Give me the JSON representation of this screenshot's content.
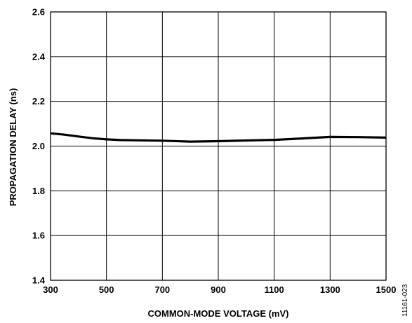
{
  "chart_data": {
    "type": "line",
    "title": "",
    "xlabel": "COMMON-MODE VOLTAGE (mV)",
    "ylabel": "PROPAGATION DELAY (ns)",
    "xlim": [
      300,
      1500
    ],
    "ylim": [
      1.4,
      2.6
    ],
    "xticks": [
      300,
      500,
      700,
      900,
      1100,
      1300,
      1500
    ],
    "yticks": [
      1.4,
      1.6,
      1.8,
      2.0,
      2.2,
      2.4,
      2.6
    ],
    "xtick_labels": [
      "300",
      "500",
      "700",
      "900",
      "1100",
      "1300",
      "1500"
    ],
    "ytick_labels": [
      "1.4",
      "1.6",
      "1.8",
      "2.0",
      "2.2",
      "2.4",
      "2.6"
    ],
    "grid": true,
    "series": [
      {
        "color": "#000000",
        "x": [
          300,
          350,
          400,
          450,
          500,
          550,
          600,
          700,
          800,
          900,
          1000,
          1100,
          1200,
          1300,
          1400,
          1500
        ],
        "y": [
          2.057,
          2.051,
          2.043,
          2.035,
          2.03,
          2.027,
          2.026,
          2.024,
          2.02,
          2.022,
          2.025,
          2.028,
          2.034,
          2.041,
          2.04,
          2.038
        ]
      }
    ]
  },
  "figure_id": "11161-023"
}
